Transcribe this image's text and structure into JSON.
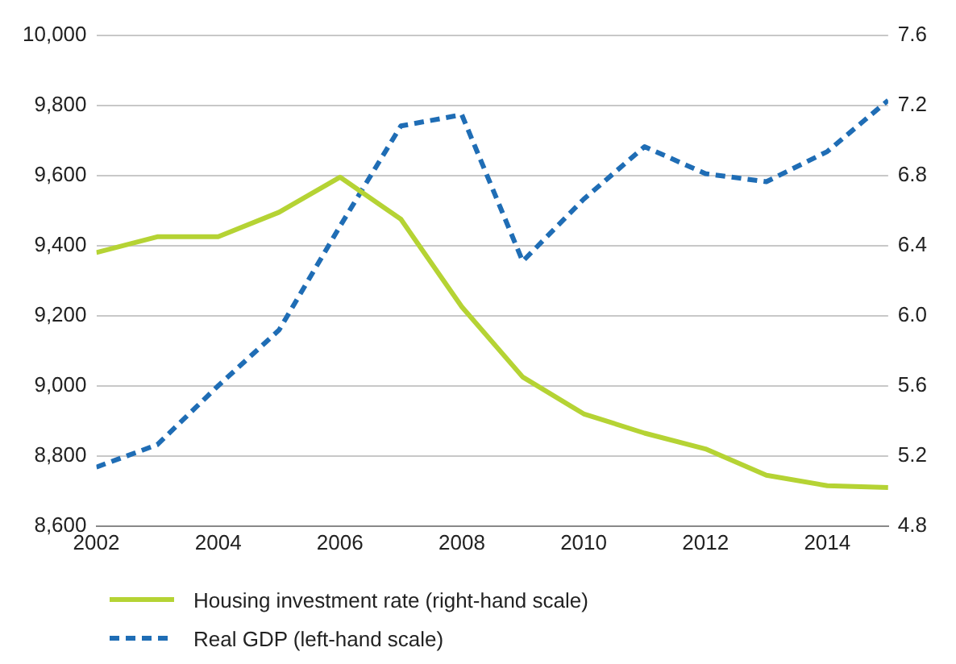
{
  "chart_data": {
    "type": "line",
    "x": [
      2002,
      2003,
      2004,
      2005,
      2006,
      2007,
      2008,
      2009,
      2010,
      2011,
      2012,
      2013,
      2014,
      2015
    ],
    "series": [
      {
        "name": "Housing investment rate (right-hand scale)",
        "color": "#b5d334",
        "axis": "y2",
        "line_style": "solid",
        "values": [
          6.36,
          6.45,
          6.45,
          6.59,
          6.79,
          6.55,
          6.05,
          5.65,
          5.44,
          5.33,
          5.24,
          5.09,
          5.03,
          5.02
        ]
      },
      {
        "name": "Real GDP (left-hand scale)",
        "color": "#1f6db5",
        "axis": "y",
        "line_style": "dashed",
        "values": [
          8768,
          8832,
          9000,
          9159,
          9455,
          9741,
          9773,
          9355,
          9532,
          9682,
          9605,
          9582,
          9668,
          9814
        ]
      }
    ],
    "xlim": [
      2002,
      2015
    ],
    "xticks": [
      2002,
      2004,
      2006,
      2008,
      2010,
      2012,
      2014
    ],
    "ylim": [
      8600,
      10000
    ],
    "yticks": [
      {
        "value": 8600,
        "label": "8,600"
      },
      {
        "value": 8800,
        "label": "8,800"
      },
      {
        "value": 9000,
        "label": "9,000"
      },
      {
        "value": 9200,
        "label": "9,200"
      },
      {
        "value": 9400,
        "label": "9,400"
      },
      {
        "value": 9600,
        "label": "9,600"
      },
      {
        "value": 9800,
        "label": "9,800"
      },
      {
        "value": 10000,
        "label": "10,000"
      }
    ],
    "y2lim": [
      4.8,
      7.6
    ],
    "y2ticks": [
      {
        "value": 4.8,
        "label": "4.8"
      },
      {
        "value": 5.2,
        "label": "5.2"
      },
      {
        "value": 5.6,
        "label": "5.6"
      },
      {
        "value": 6,
        "label": "6.0"
      },
      {
        "value": 6.4,
        "label": "6.4"
      },
      {
        "value": 6.8,
        "label": "6.8"
      },
      {
        "value": 7.2,
        "label": "7.2"
      },
      {
        "value": 7.6,
        "label": "7.6"
      }
    ],
    "grid": "y",
    "legend": "bottom",
    "marker": "none"
  }
}
